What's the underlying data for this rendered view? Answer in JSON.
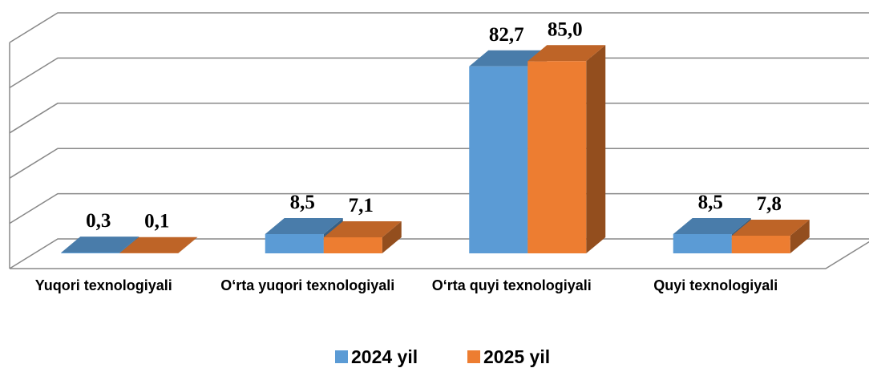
{
  "chart_data": {
    "type": "bar3d",
    "categories": [
      "Yuqori texnologiyali",
      "O‘rta yuqori texnologiyali",
      "O‘rta quyi texnologiyali",
      "Quyi texnologiyali"
    ],
    "series": [
      {
        "name": "2024 yil",
        "color": "#5b9bd5",
        "values": [
          0.3,
          8.5,
          82.7,
          8.5
        ],
        "value_labels": [
          "0,3",
          "8,5",
          "82,7",
          "8,5"
        ]
      },
      {
        "name": "2025 yil",
        "color": "#ed7d31",
        "values": [
          0.1,
          7.1,
          85.0,
          7.8
        ],
        "value_labels": [
          "0,1",
          "7,1",
          "85,0",
          "7,8"
        ]
      }
    ],
    "ylim": [
      0,
      100
    ],
    "yticks": [
      0,
      20,
      40,
      60,
      80,
      100
    ],
    "grid": true,
    "legend": "bottom"
  }
}
